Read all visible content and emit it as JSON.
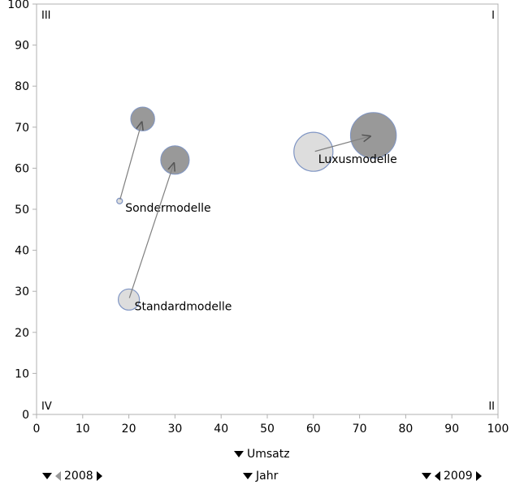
{
  "chart_data": {
    "type": "scatter",
    "xlim": [
      0,
      100
    ],
    "ylim": [
      0,
      100
    ],
    "x_ticks": [
      0,
      10,
      20,
      30,
      40,
      50,
      60,
      70,
      80,
      90,
      100
    ],
    "y_ticks": [
      0,
      10,
      20,
      30,
      40,
      50,
      60,
      70,
      80,
      90,
      100
    ],
    "grid": false,
    "quadrant_labels": {
      "top_left": "III",
      "top_right": "I",
      "bottom_left": "IV",
      "bottom_right": "II"
    },
    "series": [
      {
        "name": "Sondermodelle",
        "from": {
          "x": 18,
          "y": 52,
          "size": 1
        },
        "to": {
          "x": 23,
          "y": 72,
          "size": 4
        }
      },
      {
        "name": "Standardmodelle",
        "from": {
          "x": 20,
          "y": 28,
          "size": 3
        },
        "to": {
          "x": 30,
          "y": 62,
          "size": 6
        }
      },
      {
        "name": "Luxusmodelle",
        "from": {
          "x": 60,
          "y": 64,
          "size": 12
        },
        "to": {
          "x": 73,
          "y": 68,
          "size": 17
        }
      }
    ],
    "colors": {
      "from_fill": "#dddddd",
      "from_stroke": "#7f95c4",
      "to_fill": "#999999",
      "to_stroke": "#7f95c4",
      "arrow": "#808080"
    }
  },
  "controls": {
    "x_axis_selector": "Umsatz",
    "animation_selector": "Jahr",
    "start_year": "2008",
    "end_year": "2009"
  }
}
